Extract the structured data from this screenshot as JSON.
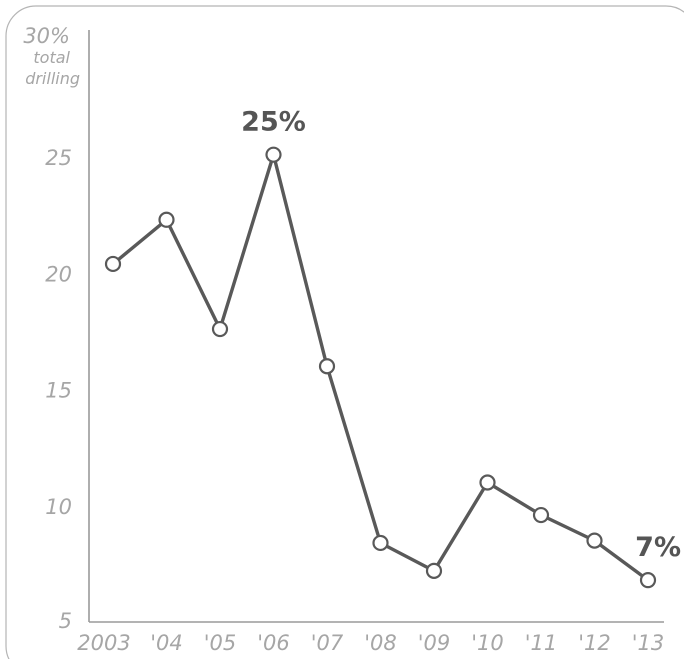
{
  "chart_data": {
    "type": "line",
    "title": "",
    "xlabel": "",
    "ylabel": "",
    "y_unit_label": {
      "top_value": "30%",
      "line1": "total",
      "line2": "drilling"
    },
    "categories": [
      "2003",
      "'04",
      "'05",
      "'06",
      "'07",
      "'08",
      "'09",
      "'10",
      "'11",
      "'12",
      "'13"
    ],
    "series": [
      {
        "values": [
          20.4,
          22.3,
          17.6,
          25.1,
          16.0,
          8.4,
          7.2,
          11.0,
          9.6,
          8.5,
          6.8
        ],
        "color": "#595959"
      }
    ],
    "yticks": [
      5,
      10,
      15,
      20,
      25
    ],
    "ylim": [
      5,
      30
    ],
    "grid": false,
    "annotations": [
      {
        "index": 3,
        "text": "25%"
      },
      {
        "index": 10,
        "text": "7%"
      }
    ],
    "colors": {
      "line": "#595959",
      "marker_fill": "#ffffff",
      "axis": "#9a9a9a",
      "tick_text": "#a6a6a6",
      "annotation_text": "#555555",
      "frame": "#b5b5b5"
    }
  }
}
